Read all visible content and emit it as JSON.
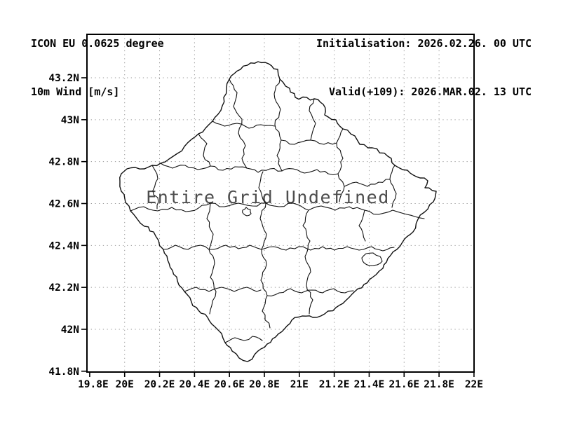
{
  "header": {
    "model": "ICON EU 0.0625 degree",
    "variable": "10m Wind [m/s]",
    "initialisation": "Initialisation: 2026.02.26. 00 UTC",
    "valid": "Valid(+109): 2026.MAR.02. 13 UTC"
  },
  "map": {
    "overlay_message": "Entire Grid Undefined",
    "x_axis": {
      "ticks": [
        "19.8E",
        "20E",
        "20.2E",
        "20.4E",
        "20.6E",
        "20.8E",
        "21E",
        "21.2E",
        "21.4E",
        "21.6E",
        "21.8E",
        "22E"
      ]
    },
    "y_axis": {
      "ticks": [
        "43.2N",
        "43N",
        "42.8N",
        "42.6N",
        "42.4N",
        "42.2N",
        "42N",
        "41.8N"
      ]
    },
    "colors": {
      "frame": "#000000",
      "grid": "#9a9a9a",
      "boundary": "#111111",
      "overlay_text": "#4d4d4d",
      "background": "#ffffff"
    }
  }
}
